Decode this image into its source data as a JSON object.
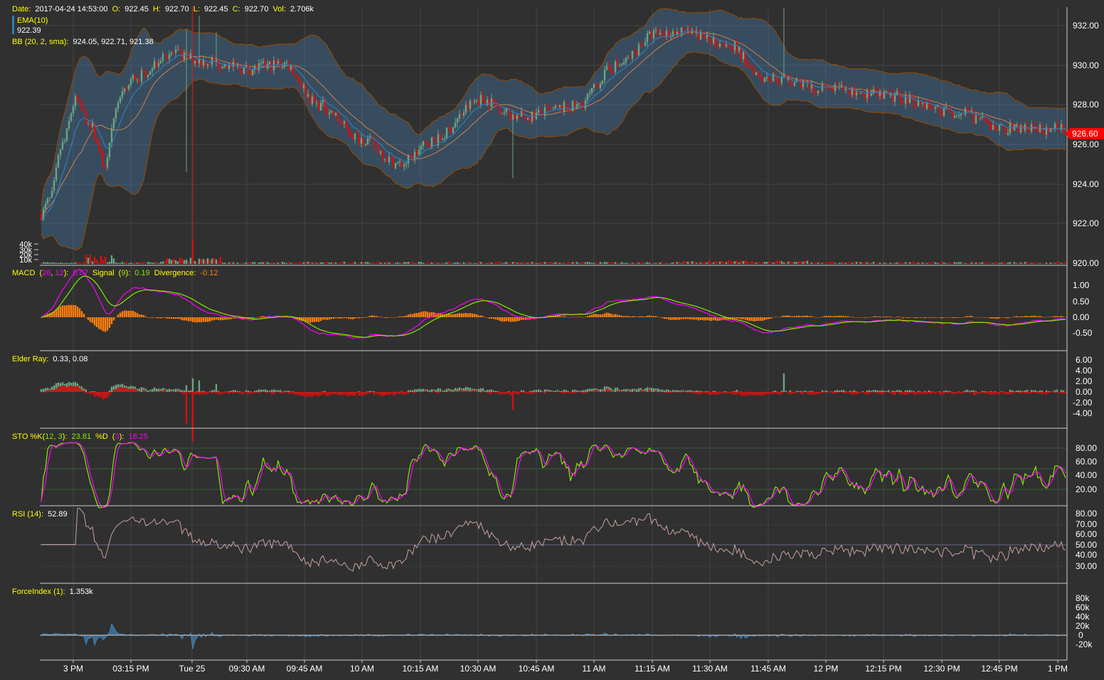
{
  "header": {
    "date_label": "Date:",
    "date_value": "2017-04-24 14:53:00",
    "open_label": "O:",
    "open_value": "922.45",
    "high_label": "H:",
    "high_value": "922.70",
    "low_label": "L:",
    "low_value": "922.45",
    "close_label": "C:",
    "close_value": "922.70",
    "vol_label": "Vol:",
    "vol_value": "2.706k",
    "ema_label": "EMA(10)",
    "ema_value": "922.39",
    "bb_label": "BB (20, 2, sma):",
    "bb_value": "924.05, 922.71, 921.38"
  },
  "price_panel": {
    "y_ticks": [
      "932.00",
      "930.00",
      "928.00",
      "926.00",
      "924.00",
      "922.00",
      "920.00"
    ],
    "last_price": "926.60",
    "volume_ticks": [
      "40k",
      "30k",
      "20k",
      "10k"
    ]
  },
  "macd_panel": {
    "label": "MACD",
    "p1": "26",
    "p2": "12",
    "value": "0.07",
    "signal_label": "Signal",
    "signal_period": "9",
    "signal_value": "0.19",
    "div_label": "Divergence:",
    "div_value": "-0.12",
    "y_ticks": [
      "1.00",
      "0.50",
      "0.00",
      "-0.50"
    ]
  },
  "elder_panel": {
    "label": "Elder Ray:",
    "value": "0.33, 0.08",
    "y_ticks": [
      "6.00",
      "4.00",
      "2.00",
      "0.00",
      "-2.00",
      "-4.00"
    ]
  },
  "sto_panel": {
    "label": "STO %K",
    "k_params": "12, 3",
    "k_value": "23.81",
    "d_label": "%D",
    "d_param": "3",
    "d_value": "18.25",
    "y_ticks": [
      "80.00",
      "60.00",
      "40.00",
      "20.00"
    ]
  },
  "rsi_panel": {
    "label": "RSI (14):",
    "value": "52.89",
    "y_ticks": [
      "80.00",
      "70.00",
      "60.00",
      "50.00",
      "40.00",
      "30.00"
    ]
  },
  "force_panel": {
    "label": "ForceIndex (1):",
    "value": "1.353k",
    "y_ticks": [
      "80k",
      "60k",
      "40k",
      "20k",
      "0",
      "-20k"
    ]
  },
  "x_axis": {
    "labels": [
      "3 PM",
      "03:15 PM",
      "Tue 25",
      "09:30 AM",
      "09:45 AM",
      "10 AM",
      "10:15 AM",
      "10:30 AM",
      "10:45 AM",
      "11 AM",
      "11:15 AM",
      "11:30 AM",
      "11:45 AM",
      "12 PM",
      "12:15 PM",
      "12:30 PM",
      "12:45 PM",
      "1 PM"
    ]
  },
  "colors": {
    "background": "#303030",
    "up": "#6ba583",
    "down": "#d80f0f",
    "ema": "#2c7fb8",
    "bb_fill": "#4682b4",
    "bb_line": "#964b00",
    "macd": "#ff00ff",
    "signal": "#84e800",
    "divergence": "#ff7f0e",
    "label_yellow": "#ffff00",
    "rsi": "#c8a0a0",
    "force": "#4682b4"
  },
  "chart_data": {
    "type": "candlestick",
    "title": "",
    "x": [
      "3 PM",
      "03:15 PM",
      "Tue 25",
      "09:30 AM",
      "09:45 AM",
      "10 AM",
      "10:15 AM",
      "10:30 AM",
      "10:45 AM",
      "11 AM",
      "11:15 AM",
      "11:30 AM",
      "11:45 AM",
      "12 PM",
      "12:15 PM",
      "12:30 PM",
      "12:45 PM",
      "1 PM"
    ],
    "ylim": [
      920,
      932.8
    ],
    "price_trend": [
      [
        0,
        922.5
      ],
      [
        4,
        923.2
      ],
      [
        10,
        926.0
      ],
      [
        16,
        928.2
      ],
      [
        22,
        927.2
      ],
      [
        30,
        925.0
      ],
      [
        36,
        928.2
      ],
      [
        44,
        929.4
      ],
      [
        60,
        930.6
      ],
      [
        78,
        930.2
      ],
      [
        96,
        929.8
      ],
      [
        114,
        930.1
      ],
      [
        130,
        928.0
      ],
      [
        150,
        926.3
      ],
      [
        168,
        925.0
      ],
      [
        184,
        926.2
      ],
      [
        206,
        928.3
      ],
      [
        224,
        927.4
      ],
      [
        250,
        927.9
      ],
      [
        270,
        930.0
      ],
      [
        288,
        931.6
      ],
      [
        300,
        931.7
      ],
      [
        320,
        931.2
      ],
      [
        340,
        929.4
      ],
      [
        370,
        928.8
      ],
      [
        400,
        928.4
      ],
      [
        430,
        927.6
      ],
      [
        450,
        926.8
      ],
      [
        480,
        926.8
      ]
    ],
    "last_price": 926.6,
    "series": [
      {
        "name": "EMA(10)"
      },
      {
        "name": "BB (20, 2, sma)"
      }
    ]
  }
}
